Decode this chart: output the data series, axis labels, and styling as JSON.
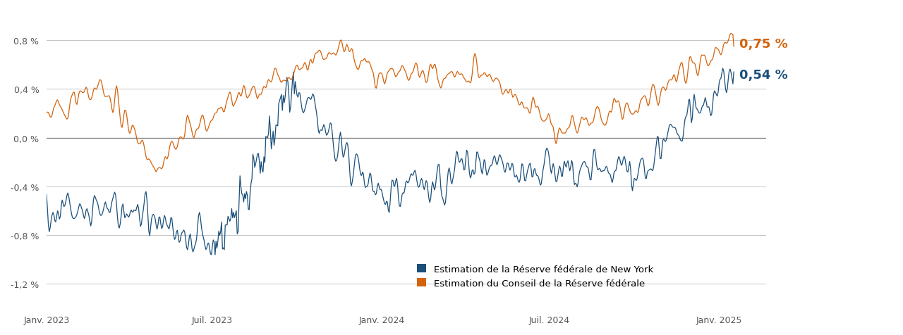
{
  "blue_label": "Estimation de la Réserve fédérale de New York",
  "orange_label": "Estimation du Conseil de la Réserve fédérale",
  "blue_end_label": "0,54 %",
  "orange_end_label": "0,75 %",
  "blue_color": "#1a4f7a",
  "orange_color": "#d4620a",
  "ylabel_ticks": [
    "0,8 %",
    "0,4 %",
    "0,0 %",
    "-0,4 %",
    "-0,8 %",
    "-1,2 %"
  ],
  "ytick_vals": [
    0.008,
    0.004,
    0.0,
    -0.004,
    -0.008,
    -0.012
  ],
  "ylim": [
    -0.014,
    0.0105
  ],
  "bg_color": "#ffffff",
  "grid_color": "#bbbbbb",
  "zero_line_color": "#888888",
  "xtick_labels": [
    "Janv. 2023",
    "Juil. 2023",
    "Janv. 2024",
    "Juil. 2024",
    "Janv. 2025"
  ]
}
